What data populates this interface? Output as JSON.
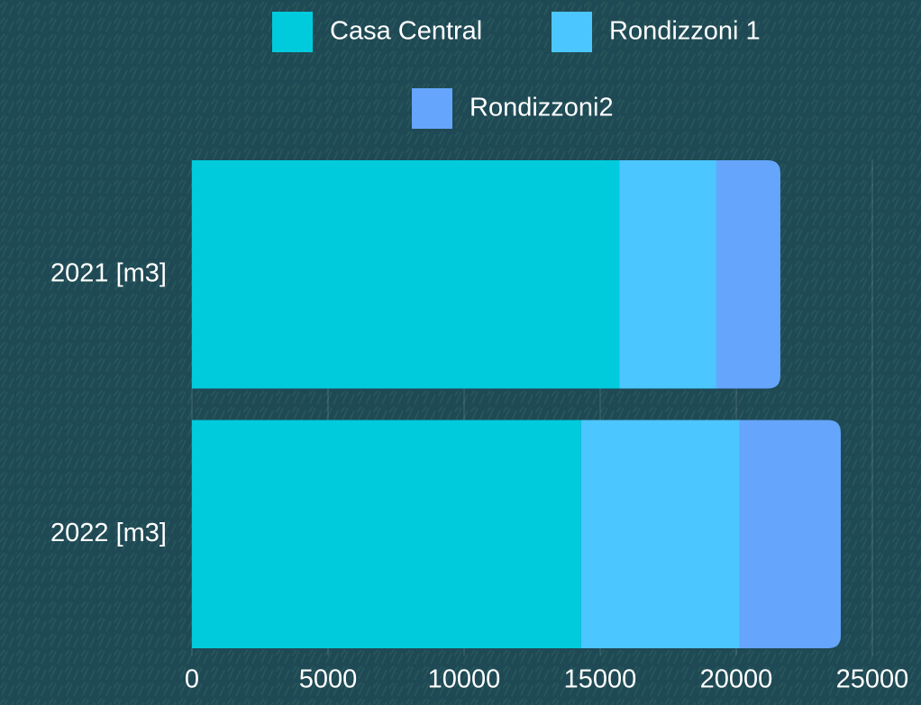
{
  "chart_data": {
    "type": "stacked-bar-horizontal",
    "categories": [
      "2021 [m3]",
      "2022 [m3]"
    ],
    "series": [
      {
        "name": "Casa Central",
        "color": "#00cbdc",
        "values": [
          15700,
          14300
        ]
      },
      {
        "name": "Rondizzoni 1",
        "color": "#4bc6ff",
        "values": [
          3570,
          5830
        ]
      },
      {
        "name": "Rondizzoni2",
        "color": "#65a6fc",
        "values": [
          2350,
          3710
        ]
      }
    ],
    "xlim": [
      0,
      25000
    ],
    "xticks": [
      0,
      5000,
      10000,
      15000,
      20000,
      25000
    ],
    "grid": true
  }
}
